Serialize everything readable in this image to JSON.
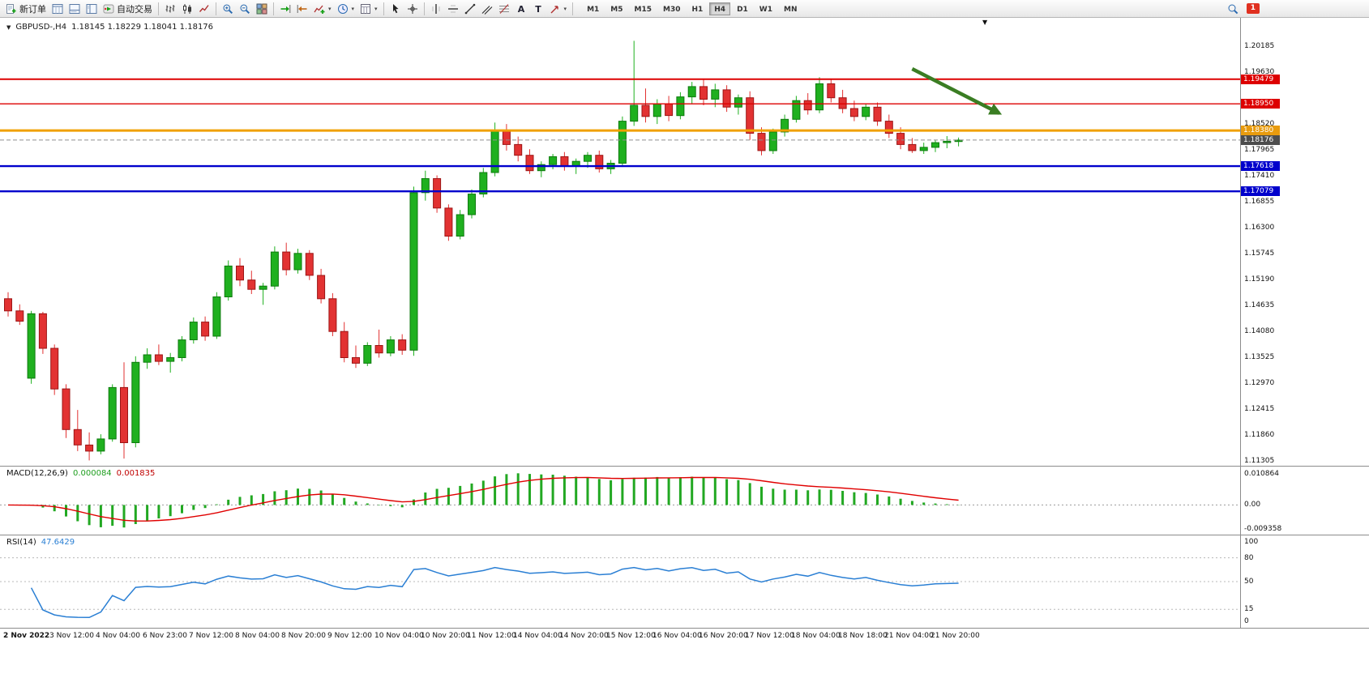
{
  "toolbar": {
    "left": [
      {
        "name": "new-order-button",
        "icon": "new-order",
        "label": "新订单"
      },
      {
        "name": "market-watch-button",
        "icon": "market-watch"
      },
      {
        "name": "data-window-button",
        "icon": "terminal"
      },
      {
        "name": "navigator-button",
        "icon": "navigator"
      },
      {
        "name": "autotrading-button",
        "icon": "autotrading",
        "label": "自动交易"
      },
      {
        "sep": true
      },
      {
        "name": "bar-chart-button",
        "icon": "bar-chart"
      },
      {
        "name": "candlestick-chart-button",
        "icon": "candle-chart"
      },
      {
        "name": "line-chart-button",
        "icon": "line-chart"
      },
      {
        "sep": true
      },
      {
        "name": "zoom-in-button",
        "icon": "zoom-in"
      },
      {
        "name": "zoom-out-button",
        "icon": "zoom-out"
      },
      {
        "name": "tile-windows-button",
        "icon": "tile-windows"
      },
      {
        "sep": true
      },
      {
        "name": "auto-scroll-button",
        "icon": "auto-scroll"
      },
      {
        "name": "chart-shift-button",
        "icon": "chart-shift"
      },
      {
        "name": "indicators-button",
        "icon": "indicators",
        "dropdown": true
      },
      {
        "name": "periods-button",
        "icon": "periods",
        "dropdown": true
      },
      {
        "name": "templates-button",
        "icon": "templates",
        "dropdown": true
      },
      {
        "sep": true
      },
      {
        "name": "cursor-button",
        "icon": "cursor"
      },
      {
        "name": "crosshair-button",
        "icon": "crosshair"
      },
      {
        "sep": true
      },
      {
        "name": "vertical-line-button",
        "icon": "vertical-line"
      },
      {
        "name": "horizontal-line-button",
        "icon": "horizontal-line"
      },
      {
        "name": "trendline-button",
        "icon": "trendline"
      },
      {
        "name": "channel-button",
        "icon": "channel"
      },
      {
        "name": "fibonacci-button",
        "icon": "fibonacci"
      },
      {
        "name": "text-button",
        "icon": "text"
      },
      {
        "name": "label-button",
        "icon": "label"
      },
      {
        "name": "arrows-button",
        "icon": "arrows",
        "dropdown": true
      },
      {
        "sep": true
      }
    ],
    "timeframes": {
      "items": [
        "M1",
        "M5",
        "M15",
        "M30",
        "H1",
        "H4",
        "D1",
        "W1",
        "MN"
      ],
      "active": "H4"
    },
    "right": [
      {
        "name": "search-button",
        "icon": "search"
      },
      {
        "name": "notifications-button",
        "icon": "notify",
        "badge": "1"
      }
    ]
  },
  "chart": {
    "symbol_header": "GBPUSD-,H4",
    "ohlc": "1.18145 1.18229 1.18041 1.18176",
    "macd": {
      "name": "MACD(12,26,9)",
      "value_main": "0.000084",
      "value_signal": "0.001835"
    },
    "rsi": {
      "name": "RSI(14)",
      "value": "47.6429"
    },
    "price_axis_labels": [
      "1.20185",
      "1.19630",
      "1.18520",
      "1.17965",
      "1.17410",
      "1.16855",
      "1.16300",
      "1.15745",
      "1.15190",
      "1.14635",
      "1.14080",
      "1.13525",
      "1.12970",
      "1.12415",
      "1.11860",
      "1.11305"
    ],
    "badges": [
      {
        "name": "resistance-line-badge",
        "price": 1.19479,
        "label": "1.19479",
        "bg": "#dd0000"
      },
      {
        "name": "resistance-line-badge",
        "price": 1.1895,
        "label": "1.18950",
        "bg": "#dd0000"
      },
      {
        "name": "pivot-line-badge",
        "price": 1.1838,
        "label": "1.18380",
        "bg": "#e89b0e"
      },
      {
        "name": "current-price-badge",
        "price": 1.18176,
        "label": "1.18176",
        "bg": "#4d4d4d"
      },
      {
        "name": "support-line-badge",
        "price": 1.17618,
        "label": "1.17618",
        "bg": "#0000cc"
      },
      {
        "name": "support-line-badge",
        "price": 1.17079,
        "label": "1.17079",
        "bg": "#0000cc"
      }
    ],
    "hlines": [
      {
        "price": 1.19479,
        "color": "#dd0000",
        "width": 2
      },
      {
        "price": 1.1895,
        "color": "#dd0000",
        "width": 1.4
      },
      {
        "price": 1.1838,
        "color": "#f0a000",
        "width": 3
      },
      {
        "price": 1.18176,
        "color": "#909090",
        "width": 1,
        "dash": "5,3"
      },
      {
        "price": 1.17618,
        "color": "#0000cc",
        "width": 2.4
      },
      {
        "price": 1.17079,
        "color": "#0000cc",
        "width": 2.4
      }
    ]
  },
  "chart_data": {
    "type": "candlestick",
    "symbol": "GBPUSD",
    "timeframe": "H4",
    "title": "GBPUSD-,H4",
    "ylim": [
      1.11275,
      1.20185
    ],
    "current_candle": {
      "open": 1.18145,
      "high": 1.18229,
      "low": 1.18041,
      "close": 1.18176
    },
    "colors": {
      "up": "#1fb01f",
      "down": "#e23232"
    },
    "x_labels": [
      "2 Nov 2022",
      "3 Nov 12:00",
      "4 Nov 04:00",
      "6 Nov 23:00",
      "7 Nov 12:00",
      "8 Nov 04:00",
      "8 Nov 20:00",
      "9 Nov 12:00",
      "10 Nov 04:00",
      "10 Nov 20:00",
      "11 Nov 12:00",
      "14 Nov 04:00",
      "14 Nov 20:00",
      "15 Nov 12:00",
      "16 Nov 04:00",
      "16 Nov 20:00",
      "17 Nov 12:00",
      "18 Nov 04:00",
      "18 Nov 18:00",
      "21 Nov 04:00",
      "21 Nov 20:00"
    ],
    "candles": [
      [
        1.1478,
        1.1492,
        1.144,
        1.1452
      ],
      [
        1.1452,
        1.1466,
        1.1422,
        1.143
      ],
      [
        1.1308,
        1.1452,
        1.1296,
        1.1446
      ],
      [
        1.1446,
        1.145,
        1.136,
        1.1372
      ],
      [
        1.1372,
        1.138,
        1.1272,
        1.1285
      ],
      [
        1.1285,
        1.1295,
        1.118,
        1.1198
      ],
      [
        1.1198,
        1.124,
        1.1152,
        1.1165
      ],
      [
        1.1165,
        1.1192,
        1.1132,
        1.1152
      ],
      [
        1.1152,
        1.1188,
        1.1145,
        1.1178
      ],
      [
        1.1178,
        1.1295,
        1.1172,
        1.1288
      ],
      [
        1.1288,
        1.1342,
        1.1136,
        1.117
      ],
      [
        1.117,
        1.1355,
        1.116,
        1.1342
      ],
      [
        1.1342,
        1.1372,
        1.1328,
        1.1358
      ],
      [
        1.1358,
        1.138,
        1.1336,
        1.1344
      ],
      [
        1.1344,
        1.1362,
        1.132,
        1.1352
      ],
      [
        1.1352,
        1.1398,
        1.1344,
        1.139
      ],
      [
        1.139,
        1.1438,
        1.1382,
        1.1428
      ],
      [
        1.1428,
        1.144,
        1.1388,
        1.1398
      ],
      [
        1.1398,
        1.1492,
        1.1392,
        1.1482
      ],
      [
        1.1482,
        1.156,
        1.1474,
        1.1548
      ],
      [
        1.1548,
        1.1565,
        1.1505,
        1.1518
      ],
      [
        1.1518,
        1.1538,
        1.1488,
        1.1498
      ],
      [
        1.1498,
        1.1512,
        1.1465,
        1.1505
      ],
      [
        1.1505,
        1.159,
        1.1498,
        1.1578
      ],
      [
        1.1578,
        1.1598,
        1.1528,
        1.154
      ],
      [
        1.154,
        1.1585,
        1.1532,
        1.1575
      ],
      [
        1.1575,
        1.1582,
        1.1518,
        1.1528
      ],
      [
        1.1528,
        1.1542,
        1.1468,
        1.1478
      ],
      [
        1.1478,
        1.149,
        1.1398,
        1.1408
      ],
      [
        1.1408,
        1.1428,
        1.1342,
        1.1352
      ],
      [
        1.1352,
        1.1378,
        1.133,
        1.134
      ],
      [
        1.134,
        1.1385,
        1.1334,
        1.1378
      ],
      [
        1.1378,
        1.1412,
        1.1352,
        1.1362
      ],
      [
        1.1362,
        1.1398,
        1.1355,
        1.139
      ],
      [
        1.139,
        1.1402,
        1.1358,
        1.1368
      ],
      [
        1.1368,
        1.1718,
        1.1356,
        1.1705
      ],
      [
        1.1705,
        1.1752,
        1.1688,
        1.1735
      ],
      [
        1.1735,
        1.1742,
        1.1662,
        1.1672
      ],
      [
        1.1672,
        1.168,
        1.1602,
        1.1612
      ],
      [
        1.1612,
        1.1668,
        1.1605,
        1.1658
      ],
      [
        1.1658,
        1.1712,
        1.165,
        1.1702
      ],
      [
        1.1702,
        1.1758,
        1.1695,
        1.1748
      ],
      [
        1.1748,
        1.1855,
        1.174,
        1.1838
      ],
      [
        1.1838,
        1.1852,
        1.1795,
        1.1808
      ],
      [
        1.1808,
        1.1825,
        1.1772,
        1.1785
      ],
      [
        1.1785,
        1.1798,
        1.1745,
        1.1752
      ],
      [
        1.1752,
        1.1772,
        1.1738,
        1.1765
      ],
      [
        1.1765,
        1.1788,
        1.1755,
        1.1782
      ],
      [
        1.1782,
        1.1792,
        1.1752,
        1.1762
      ],
      [
        1.1762,
        1.1778,
        1.1745,
        1.1772
      ],
      [
        1.1772,
        1.1792,
        1.1758,
        1.1785
      ],
      [
        1.1785,
        1.1795,
        1.1748,
        1.1756
      ],
      [
        1.1756,
        1.1775,
        1.1745,
        1.1768
      ],
      [
        1.1768,
        1.1868,
        1.176,
        1.1858
      ],
      [
        1.1858,
        1.203,
        1.1848,
        1.1892
      ],
      [
        1.1892,
        1.1928,
        1.1855,
        1.1868
      ],
      [
        1.1868,
        1.1905,
        1.1852,
        1.1895
      ],
      [
        1.1895,
        1.1912,
        1.1858,
        1.187
      ],
      [
        1.187,
        1.192,
        1.1862,
        1.191
      ],
      [
        1.191,
        1.1942,
        1.1895,
        1.1932
      ],
      [
        1.1932,
        1.1948,
        1.1892,
        1.1905
      ],
      [
        1.1905,
        1.1938,
        1.1888,
        1.1925
      ],
      [
        1.1925,
        1.1935,
        1.1878,
        1.1888
      ],
      [
        1.1888,
        1.1915,
        1.1872,
        1.1908
      ],
      [
        1.1908,
        1.1922,
        1.1818,
        1.1832
      ],
      [
        1.1832,
        1.1845,
        1.1785,
        1.1795
      ],
      [
        1.1795,
        1.1842,
        1.1788,
        1.1835
      ],
      [
        1.1835,
        1.1872,
        1.1825,
        1.1862
      ],
      [
        1.1862,
        1.1912,
        1.1855,
        1.1902
      ],
      [
        1.1902,
        1.1918,
        1.1872,
        1.1882
      ],
      [
        1.1882,
        1.1952,
        1.1875,
        1.1938
      ],
      [
        1.1938,
        1.1948,
        1.1898,
        1.1908
      ],
      [
        1.1908,
        1.1925,
        1.1875,
        1.1885
      ],
      [
        1.1885,
        1.1902,
        1.1858,
        1.1868
      ],
      [
        1.1868,
        1.1895,
        1.186,
        1.1888
      ],
      [
        1.1888,
        1.1898,
        1.1848,
        1.1858
      ],
      [
        1.1858,
        1.1872,
        1.1822,
        1.1832
      ],
      [
        1.1832,
        1.1845,
        1.1798,
        1.1808
      ],
      [
        1.1808,
        1.1822,
        1.179,
        1.1795
      ],
      [
        1.1795,
        1.1812,
        1.1788,
        1.1802
      ],
      [
        1.1802,
        1.1818,
        1.1792,
        1.1812
      ],
      [
        1.1812,
        1.1826,
        1.18,
        1.1815
      ],
      [
        1.18145,
        1.18229,
        1.18041,
        1.18176
      ]
    ],
    "indicators": [
      {
        "type": "MACD",
        "params": [
          12,
          26,
          9
        ],
        "display_values": [
          8.4e-05,
          0.001835
        ],
        "scale_labels": [
          "0.010864",
          "0.00",
          "-0.009358"
        ],
        "histogram_color": "#22a822",
        "signal_color": "#e00000"
      },
      {
        "type": "RSI",
        "params": [
          14
        ],
        "display_value": 47.6429,
        "levels": [
          80,
          50,
          15
        ],
        "scale_labels": [
          "100",
          "80",
          "50",
          "15",
          "0"
        ],
        "line_color": "#2a7fd4"
      }
    ],
    "annotations": [
      {
        "type": "arrow",
        "note": "downtrend-arrow",
        "color": "#3a7d23",
        "from": {
          "index": 78,
          "price": 1.197
        },
        "to": {
          "index": 85.5,
          "price": 1.1875
        }
      }
    ]
  }
}
